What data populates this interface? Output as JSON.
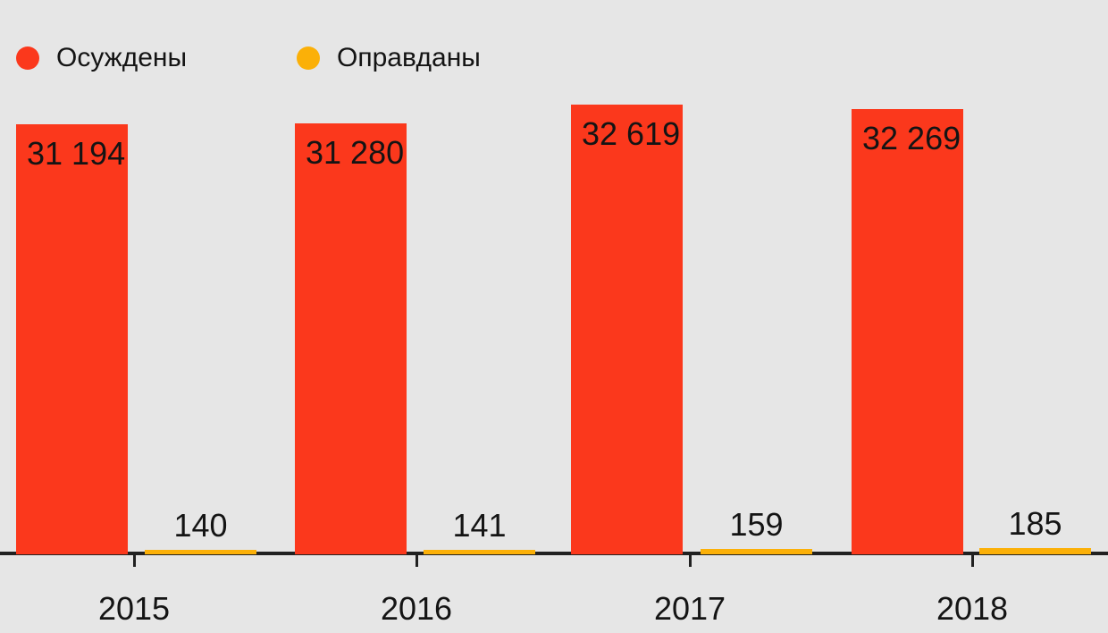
{
  "colors": {
    "background": "#e6e6e6",
    "convicted_red": "#fb381c",
    "acquitted_amber": "#fbb008",
    "axis": "#212121",
    "text": "#141414"
  },
  "legend": {
    "items": [
      {
        "key": "convicted",
        "label": "Осуждены",
        "color": "#fb381c"
      },
      {
        "key": "acquitted",
        "label": "Оправданы",
        "color": "#fbb008"
      }
    ]
  },
  "chart_data": {
    "type": "bar",
    "title": "",
    "xlabel": "",
    "ylabel": "",
    "categories": [
      "2015",
      "2016",
      "2017",
      "2018"
    ],
    "series": [
      {
        "key": "convicted",
        "name": "Осуждены",
        "color": "#fb381c",
        "values": [
          31194,
          31280,
          32619,
          32269
        ],
        "labels": [
          "31 194",
          "31 280",
          "32 619",
          "32 269"
        ]
      },
      {
        "key": "acquitted",
        "name": "Оправданы",
        "color": "#fbb008",
        "values": [
          140,
          141,
          159,
          185
        ],
        "labels": [
          "140",
          "141",
          "159",
          "185"
        ]
      }
    ],
    "ylim": [
      0,
      32619
    ],
    "grid": false,
    "legend_position": "top-left",
    "value_labels_shown": true
  }
}
